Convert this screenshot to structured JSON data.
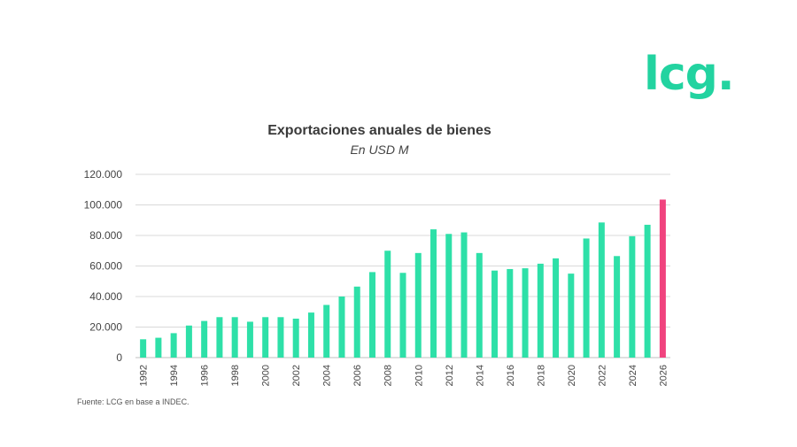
{
  "logo": {
    "text": "lcg",
    "dot": ".",
    "color": "#22d3a0"
  },
  "source_note": "Fuente: LCG en base a INDEC.",
  "colors": {
    "bar": "#2ee0a8",
    "highlight": "#f0437e",
    "grid": "#d9d9d9",
    "axis_text": "#444444"
  },
  "chart_data": {
    "type": "bar",
    "title": "Exportaciones anuales de bienes",
    "subtitle": "En USD M",
    "xlabel": "",
    "ylabel": "",
    "ylim": [
      0,
      120000
    ],
    "yticks": [
      0,
      20000,
      40000,
      60000,
      80000,
      100000,
      120000
    ],
    "ytick_labels": [
      "0",
      "20.000",
      "40.000",
      "60.000",
      "80.000",
      "100.000",
      "120.000"
    ],
    "grid": true,
    "x_tick_labels": [
      "1992",
      "1994",
      "1996",
      "1998",
      "2000",
      "2002",
      "2004",
      "2006",
      "2008",
      "2010",
      "2012",
      "2014",
      "2016",
      "2018",
      "2020",
      "2022",
      "2024",
      "2026"
    ],
    "categories": [
      "1992",
      "1993",
      "1994",
      "1995",
      "1996",
      "1997",
      "1998",
      "1999",
      "2000",
      "2001",
      "2002",
      "2003",
      "2004",
      "2005",
      "2006",
      "2007",
      "2008",
      "2009",
      "2010",
      "2011",
      "2012",
      "2013",
      "2014",
      "2015",
      "2016",
      "2017",
      "2018",
      "2019",
      "2020",
      "2021",
      "2022",
      "2023",
      "2024",
      "2025",
      "2026"
    ],
    "values": [
      12000,
      13000,
      16000,
      21000,
      24000,
      26500,
      26500,
      23500,
      26500,
      26500,
      25500,
      29500,
      34500,
      40000,
      46500,
      56000,
      70000,
      55500,
      68500,
      84000,
      81000,
      82000,
      68500,
      57000,
      58000,
      58500,
      61500,
      65000,
      55000,
      78000,
      88500,
      66500,
      79500,
      87000,
      103500
    ],
    "highlight_categories": [
      "2026"
    ]
  }
}
